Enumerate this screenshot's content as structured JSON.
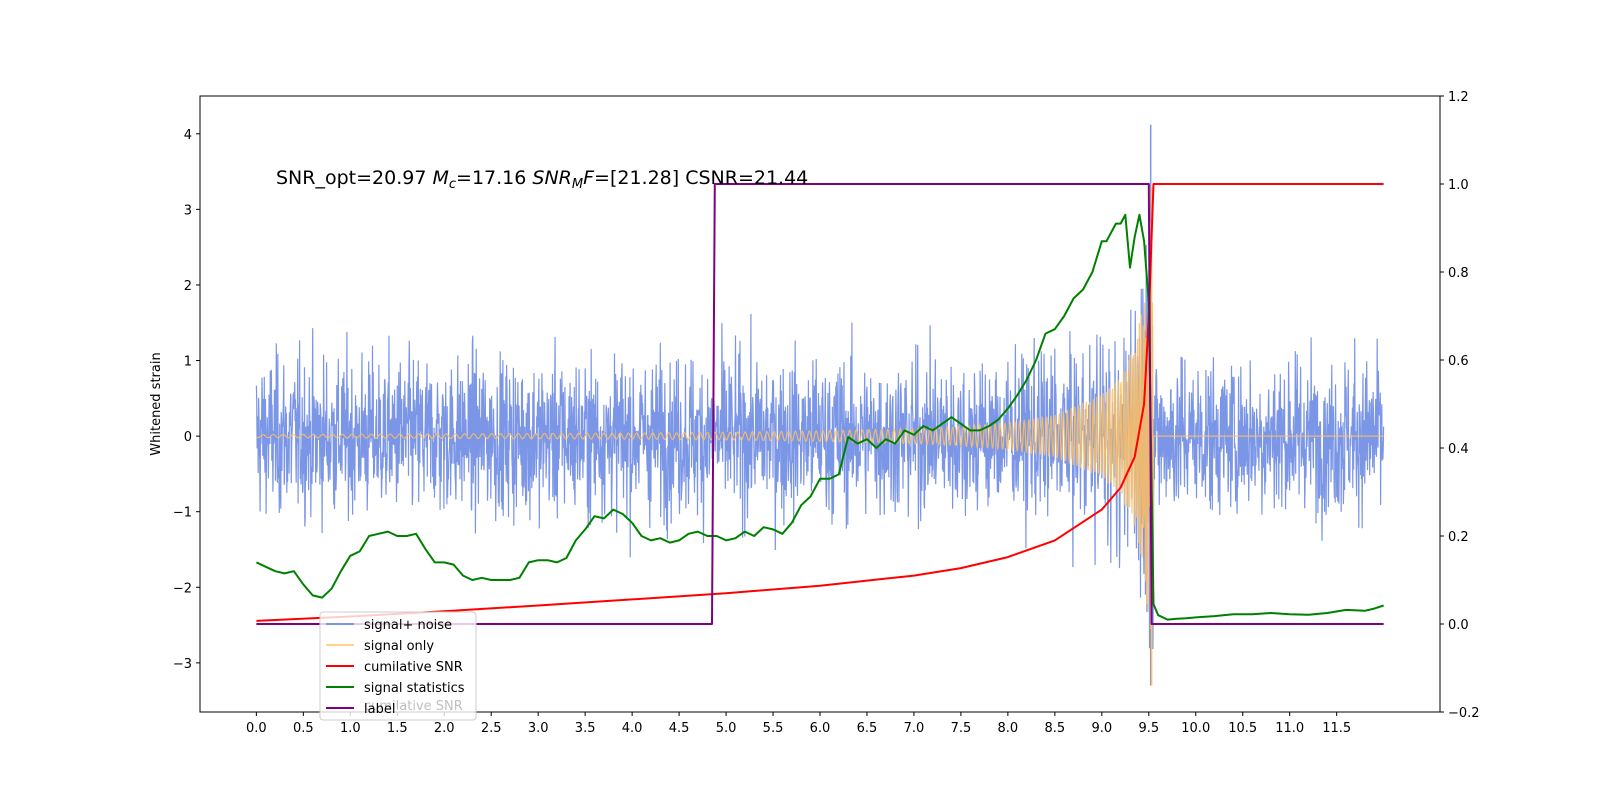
{
  "chart_data": {
    "type": "line",
    "title": "SNR_opt=20.97 $M_c$=17.16 $SNR_MF$=[21.28] CSNR=21.44",
    "title_parts": {
      "part1": "SNR_opt=20.97 ",
      "mc_symbol": "M",
      "mc_sub": "c",
      "part2": "=17.16 ",
      "snr_symbol": "SNR",
      "snr_sub": "M",
      "snr_f": "F",
      "part3": "=[21.28] CSNR=21.44"
    },
    "xlabel": "",
    "ylabel": "Whitened strain",
    "ylabel_right": "",
    "xlim": [
      -0.6,
      12.6
    ],
    "ylim": [
      -3.65,
      4.5
    ],
    "ylim_right": [
      -0.2,
      1.2
    ],
    "x_ticks": [
      "0.0",
      "0.5",
      "1.0",
      "1.5",
      "2.0",
      "2.5",
      "3.0",
      "3.5",
      "4.0",
      "4.5",
      "5.0",
      "5.5",
      "6.0",
      "6.5",
      "7.0",
      "7.5",
      "8.0",
      "8.5",
      "9.0",
      "9.5",
      "10.0",
      "10.5",
      "11.0",
      "11.5"
    ],
    "y_ticks": [
      "−3",
      "−2",
      "−1",
      "0",
      "1",
      "2",
      "3",
      "4"
    ],
    "y_ticks_right": [
      "−0.2",
      "0.0",
      "0.2",
      "0.4",
      "0.6",
      "0.8",
      "1.0",
      "1.2"
    ],
    "grid": false,
    "legend_position": "lower-left",
    "legend": [
      {
        "name": "signal+ noise",
        "color": "#7b96e6"
      },
      {
        "name": "signal only",
        "color": "#ffbf5f"
      },
      {
        "name": "cumilative SNR",
        "color": "#ff0000"
      },
      {
        "name": "signal statistics",
        "color": "#008000"
      },
      {
        "name": "label",
        "color": "#800080"
      }
    ],
    "legend_overlapped_text": "cumilative SNR",
    "series": [
      {
        "name": "signal+ noise",
        "axis": "left",
        "color": "#7b96e6",
        "description_range": {
          "x": [
            0.0,
            12.0
          ],
          "typical_envelope": [
            -1.6,
            1.6
          ],
          "max_peak": 4.12,
          "max_peak_x": 9.52,
          "min_peak": -3.3
        }
      },
      {
        "name": "signal only",
        "axis": "left",
        "color": "#ffbf5f",
        "envelope_points": [
          [
            0.0,
            0.02
          ],
          [
            2.0,
            0.03
          ],
          [
            4.0,
            0.04
          ],
          [
            5.0,
            0.05
          ],
          [
            6.0,
            0.07
          ],
          [
            7.0,
            0.1
          ],
          [
            7.5,
            0.13
          ],
          [
            8.0,
            0.18
          ],
          [
            8.5,
            0.28
          ],
          [
            9.0,
            0.55
          ],
          [
            9.2,
            0.8
          ],
          [
            9.35,
            1.2
          ],
          [
            9.45,
            1.8
          ],
          [
            9.5,
            2.5
          ],
          [
            9.53,
            3.3
          ]
        ],
        "chirp_end_x": 9.55
      },
      {
        "name": "cumilative SNR",
        "axis": "right",
        "color": "#ff0000",
        "x": [
          0.0,
          1.0,
          2.0,
          3.0,
          4.0,
          5.0,
          6.0,
          7.0,
          7.5,
          8.0,
          8.5,
          9.0,
          9.2,
          9.35,
          9.45,
          9.5,
          9.53,
          9.55,
          12.0
        ],
        "y": [
          0.007,
          0.017,
          0.029,
          0.042,
          0.056,
          0.07,
          0.087,
          0.11,
          0.127,
          0.152,
          0.19,
          0.26,
          0.31,
          0.38,
          0.5,
          0.7,
          0.88,
          1.0,
          1.0
        ]
      },
      {
        "name": "signal statistics",
        "axis": "right",
        "color": "#008000",
        "x": [
          0.0,
          0.1,
          0.2,
          0.3,
          0.4,
          0.5,
          0.6,
          0.7,
          0.8,
          0.9,
          1.0,
          1.1,
          1.2,
          1.3,
          1.4,
          1.5,
          1.6,
          1.7,
          1.8,
          1.9,
          2.0,
          2.1,
          2.2,
          2.3,
          2.4,
          2.5,
          2.6,
          2.7,
          2.8,
          2.9,
          3.0,
          3.1,
          3.2,
          3.3,
          3.4,
          3.5,
          3.6,
          3.7,
          3.8,
          3.9,
          4.0,
          4.1,
          4.2,
          4.3,
          4.4,
          4.5,
          4.6,
          4.7,
          4.8,
          4.9,
          5.0,
          5.1,
          5.2,
          5.3,
          5.4,
          5.5,
          5.6,
          5.7,
          5.8,
          5.9,
          6.0,
          6.1,
          6.2,
          6.3,
          6.4,
          6.5,
          6.6,
          6.7,
          6.8,
          6.9,
          7.0,
          7.1,
          7.2,
          7.3,
          7.4,
          7.5,
          7.6,
          7.7,
          7.8,
          7.9,
          8.0,
          8.1,
          8.2,
          8.3,
          8.4,
          8.5,
          8.6,
          8.7,
          8.8,
          8.9,
          9.0,
          9.05,
          9.1,
          9.15,
          9.2,
          9.25,
          9.3,
          9.35,
          9.4,
          9.45,
          9.5,
          9.55,
          9.6,
          9.7,
          9.8,
          9.9,
          10.0,
          10.2,
          10.4,
          10.6,
          10.8,
          11.0,
          11.2,
          11.4,
          11.6,
          11.8,
          11.9,
          12.0
        ],
        "y": [
          0.14,
          0.13,
          0.12,
          0.115,
          0.12,
          0.09,
          0.065,
          0.06,
          0.08,
          0.12,
          0.155,
          0.165,
          0.2,
          0.205,
          0.21,
          0.2,
          0.2,
          0.205,
          0.17,
          0.14,
          0.14,
          0.135,
          0.11,
          0.1,
          0.105,
          0.1,
          0.1,
          0.1,
          0.105,
          0.14,
          0.145,
          0.145,
          0.14,
          0.15,
          0.19,
          0.215,
          0.245,
          0.24,
          0.26,
          0.25,
          0.23,
          0.2,
          0.19,
          0.195,
          0.185,
          0.19,
          0.205,
          0.21,
          0.2,
          0.2,
          0.19,
          0.195,
          0.21,
          0.2,
          0.22,
          0.215,
          0.205,
          0.23,
          0.27,
          0.29,
          0.33,
          0.33,
          0.34,
          0.425,
          0.41,
          0.42,
          0.4,
          0.42,
          0.41,
          0.44,
          0.43,
          0.45,
          0.44,
          0.455,
          0.47,
          0.455,
          0.44,
          0.44,
          0.45,
          0.465,
          0.49,
          0.52,
          0.555,
          0.6,
          0.66,
          0.67,
          0.7,
          0.74,
          0.76,
          0.8,
          0.87,
          0.87,
          0.89,
          0.91,
          0.91,
          0.93,
          0.81,
          0.88,
          0.93,
          0.87,
          0.73,
          0.045,
          0.02,
          0.01,
          0.012,
          0.013,
          0.015,
          0.018,
          0.022,
          0.022,
          0.025,
          0.022,
          0.021,
          0.025,
          0.032,
          0.03,
          0.035,
          0.042
        ],
        "line_end_x": 12.0
      },
      {
        "name": "label",
        "axis": "right",
        "color": "#800080",
        "x": [
          0.0,
          4.85,
          4.88,
          9.5,
          9.53,
          12.0
        ],
        "y": [
          0.0,
          0.0,
          1.0,
          1.0,
          0.0,
          0.0
        ]
      }
    ]
  }
}
